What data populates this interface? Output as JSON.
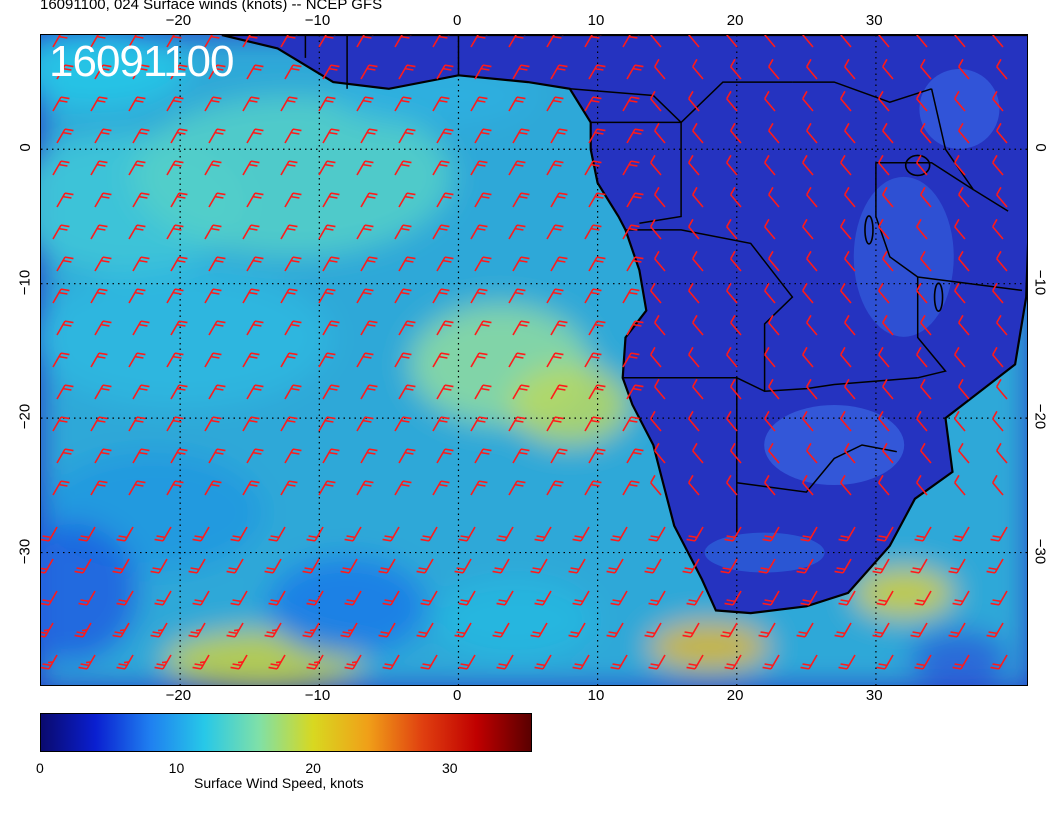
{
  "title": "16091100, 024 Surface winds (knots) -- NCEP GFS",
  "run_label": "16091100",
  "map": {
    "lon_ticks": [
      "−20",
      "−10",
      "0",
      "10",
      "20",
      "30"
    ],
    "lon_values": [
      -20,
      -10,
      0,
      10,
      20,
      30
    ],
    "lat_ticks": [
      "0",
      "−10",
      "−20",
      "−30"
    ],
    "lat_values": [
      0,
      -10,
      -20,
      -30
    ],
    "lon_range": [
      -30,
      41
    ],
    "lat_range": [
      -40,
      8.5
    ],
    "barb_color": "#ff1a1a",
    "ocean_color": "#2fa8d8",
    "land_color": "#2533c0"
  },
  "colorbar": {
    "ticks": [
      "0",
      "10",
      "20",
      "30"
    ],
    "tick_values": [
      0,
      10,
      20,
      30
    ],
    "range": [
      0,
      36
    ],
    "title": "Surface Wind Speed, knots",
    "colors": [
      "#0a0a6e",
      "#0a1fd0",
      "#1f7ff0",
      "#27c8e8",
      "#7fe0a8",
      "#d8d820",
      "#f0a018",
      "#e04010",
      "#c00000",
      "#5a0000"
    ]
  }
}
